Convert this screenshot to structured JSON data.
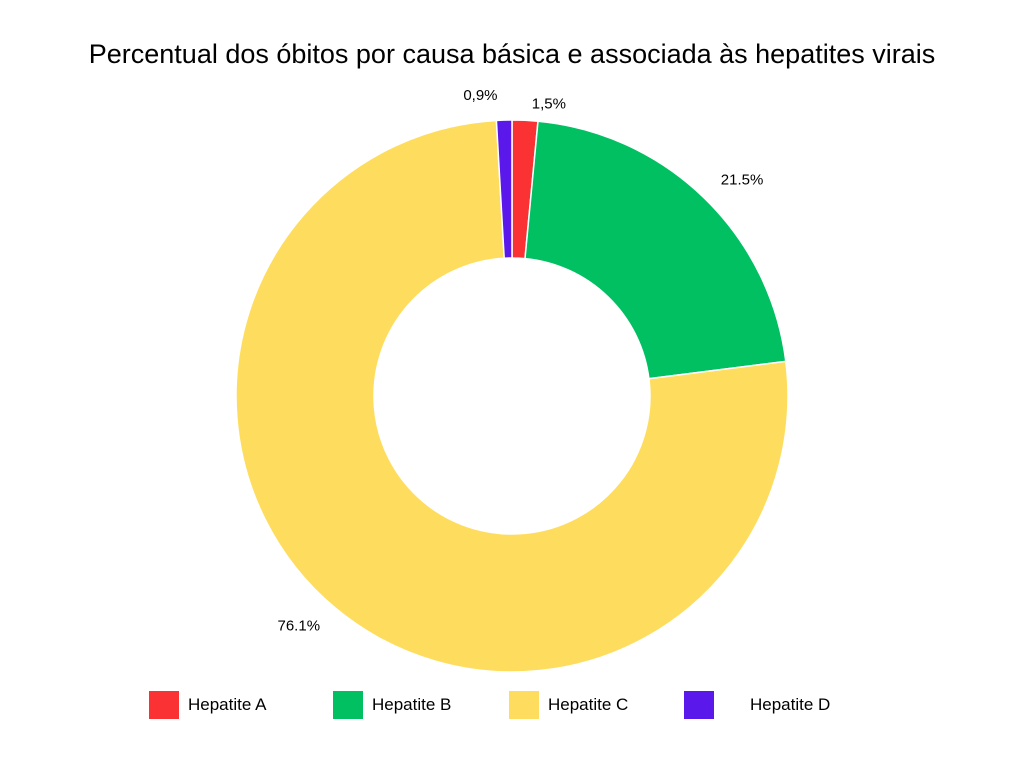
{
  "chart_data": {
    "type": "pie",
    "variant": "donut",
    "title": "Percentual dos óbitos por causa básica e associada às hepatites virais",
    "slices": [
      {
        "label": "Hepatite A",
        "value": 1.5,
        "value_label": "1,5%",
        "color": "#fb3233"
      },
      {
        "label": "Hepatite B",
        "value": 21.5,
        "value_label": "21.5%",
        "color": "#00c062"
      },
      {
        "label": "Hepatite C",
        "value": 76.1,
        "value_label": "76.1%",
        "color": "#fedd5e"
      },
      {
        "label": "Hepatite D",
        "value": 0.9,
        "value_label": "0,9%",
        "color": "#5b18ea"
      }
    ],
    "start_angle_deg": 0,
    "direction": "clockwise",
    "legend_position": "bottom"
  }
}
